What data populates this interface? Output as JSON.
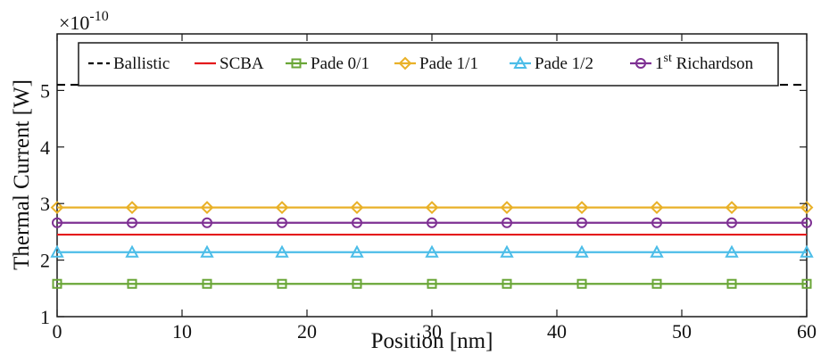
{
  "chart_data": {
    "type": "line",
    "xlabel": "Position [nm]",
    "ylabel": "Thermal Current [W]",
    "y_multiplier": {
      "prefix": "×10",
      "exponent": "-10"
    },
    "xlim": [
      0,
      60
    ],
    "ylim": [
      1,
      6
    ],
    "x_ticks": [
      0,
      10,
      20,
      30,
      40,
      50,
      60
    ],
    "y_ticks": [
      1,
      2,
      3,
      4,
      5
    ],
    "grid": false,
    "legend_position": "top",
    "marker_x": [
      0,
      6,
      12,
      18,
      24,
      30,
      36,
      42,
      48,
      54,
      60
    ],
    "series": [
      {
        "name": "Ballistic",
        "label_main": "Ballistic",
        "label_sup": "",
        "label_tail": "",
        "color": "#000000",
        "dash": "dashed",
        "marker": "none",
        "values": [
          5.1,
          5.1
        ]
      },
      {
        "name": "SCBA",
        "label_main": "SCBA",
        "label_sup": "",
        "label_tail": "",
        "color": "#e41a1c",
        "dash": "solid",
        "marker": "none",
        "values": [
          2.45,
          2.45
        ]
      },
      {
        "name": "Pade 0/1",
        "label_main": "Pade 0/1",
        "label_sup": "",
        "label_tail": "",
        "color": "#6aa637",
        "dash": "solid",
        "marker": "square",
        "values": [
          1.58,
          1.58
        ]
      },
      {
        "name": "Pade 1/1",
        "label_main": "Pade 1/1",
        "label_sup": "",
        "label_tail": "",
        "color": "#e9b128",
        "dash": "solid",
        "marker": "diamond",
        "values": [
          2.93,
          2.93
        ]
      },
      {
        "name": "Pade 1/2",
        "label_main": "Pade 1/2",
        "label_sup": "",
        "label_tail": "",
        "color": "#4cbde8",
        "dash": "solid",
        "marker": "triangle",
        "values": [
          2.14,
          2.14
        ]
      },
      {
        "name": "1st Richardson",
        "label_main": "1",
        "label_sup": "st",
        "label_tail": "Richardson",
        "color": "#7e3093",
        "dash": "solid",
        "marker": "circle",
        "values": [
          2.66,
          2.66
        ]
      }
    ]
  }
}
